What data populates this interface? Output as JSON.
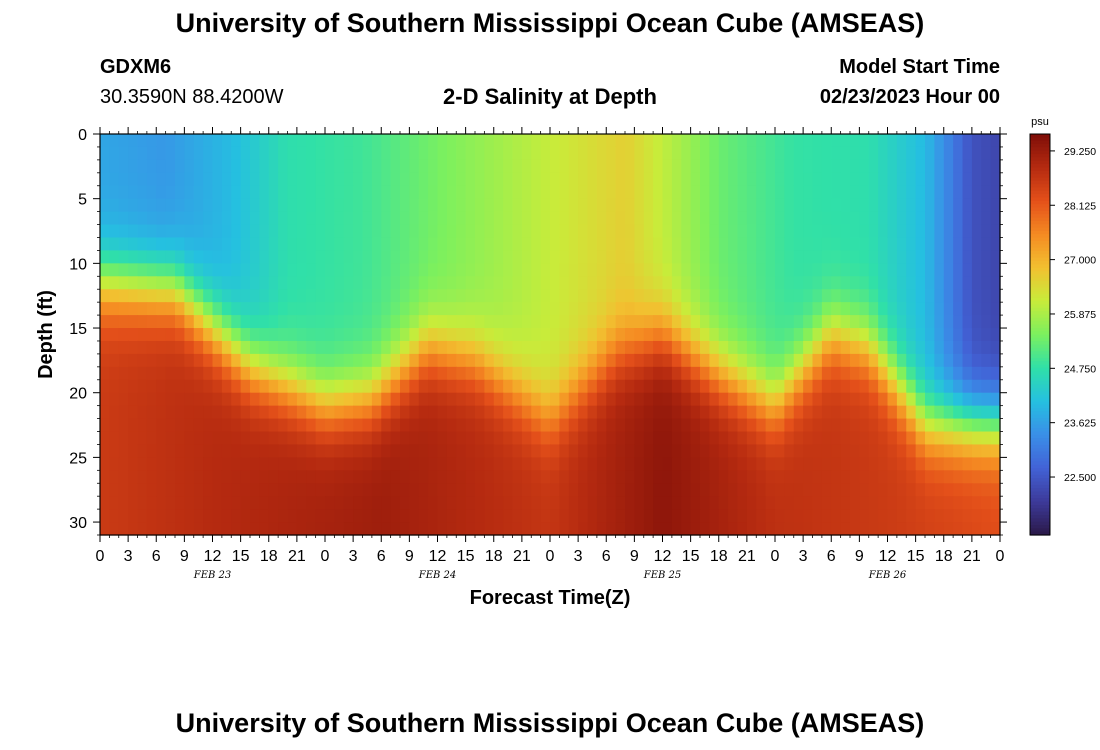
{
  "header": {
    "title": "University of Southern Mississippi Ocean Cube (AMSEAS)",
    "station": "GDXM6",
    "coordinates": "30.3590N  88.4200W",
    "subtitle": "2-D Salinity at Depth",
    "model_start_label": "Model Start Time",
    "model_start_value": "02/23/2023 Hour 00"
  },
  "footer": {
    "title": "University of Southern Mississippi Ocean Cube (AMSEAS)"
  },
  "chart_data": {
    "type": "heatmap",
    "title": "2-D Salinity at Depth",
    "xlabel": "Forecast Time(Z)",
    "ylabel": "Depth (ft)",
    "x_range": [
      0,
      96
    ],
    "y_range": [
      0,
      31
    ],
    "x_ticks": [
      "0",
      "3",
      "6",
      "9",
      "12",
      "15",
      "18",
      "21",
      "0",
      "3",
      "6",
      "9",
      "12",
      "15",
      "18",
      "21",
      "0",
      "3",
      "6",
      "9",
      "12",
      "15",
      "18",
      "21",
      "0",
      "3",
      "6",
      "9",
      "12",
      "15",
      "18",
      "21",
      "0"
    ],
    "y_ticks": [
      "0",
      "5",
      "10",
      "15",
      "20",
      "25",
      "30"
    ],
    "date_labels": [
      {
        "label": "FEB 23",
        "hour": 12
      },
      {
        "label": "FEB 24",
        "hour": 36
      },
      {
        "label": "FEB 25",
        "hour": 60
      },
      {
        "label": "FEB 26",
        "hour": 84
      }
    ],
    "colorbar": {
      "unit": "psu",
      "min": 21.3,
      "max": 29.6,
      "ticks": [
        "29.250",
        "28.125",
        "27.000",
        "25.875",
        "24.750",
        "23.625",
        "22.500"
      ],
      "colors": [
        "#2a1848",
        "#3d3a9a",
        "#4262d6",
        "#3a8fe8",
        "#25c0e0",
        "#30e0a8",
        "#7cf05e",
        "#c8ec3a",
        "#f2c030",
        "#f58a22",
        "#e4501a",
        "#b52a10",
        "#7e0e08"
      ]
    },
    "surface_salinity_profile": [
      {
        "hour": 0,
        "value": 23.7
      },
      {
        "hour": 7,
        "value": 23.5
      },
      {
        "hour": 14,
        "value": 24.0
      },
      {
        "hour": 20,
        "value": 24.7
      },
      {
        "hour": 28,
        "value": 24.9
      },
      {
        "hour": 36,
        "value": 25.4
      },
      {
        "hour": 46,
        "value": 26.0
      },
      {
        "hour": 56,
        "value": 26.6
      },
      {
        "hour": 66,
        "value": 25.3
      },
      {
        "hour": 74,
        "value": 24.8
      },
      {
        "hour": 82,
        "value": 24.7
      },
      {
        "hour": 88,
        "value": 24.0
      },
      {
        "hour": 93,
        "value": 22.4
      },
      {
        "hour": 96,
        "value": 22.2
      }
    ],
    "bottom_salinity_profile": [
      {
        "hour": 0,
        "value": 28.6
      },
      {
        "hour": 12,
        "value": 28.9
      },
      {
        "hour": 30,
        "value": 29.2
      },
      {
        "hour": 48,
        "value": 28.7
      },
      {
        "hour": 60,
        "value": 29.4
      },
      {
        "hour": 72,
        "value": 28.8
      },
      {
        "hour": 84,
        "value": 28.6
      },
      {
        "hour": 96,
        "value": 28.3
      }
    ],
    "halocline_depth_profile": [
      {
        "hour": 0,
        "value": 11.5
      },
      {
        "hour": 8,
        "value": 12.0
      },
      {
        "hour": 16,
        "value": 18.0
      },
      {
        "hour": 24,
        "value": 21.0
      },
      {
        "hour": 29,
        "value": 20.5
      },
      {
        "hour": 35,
        "value": 16.5
      },
      {
        "hour": 40,
        "value": 17.5
      },
      {
        "hour": 48,
        "value": 22.0
      },
      {
        "hour": 55,
        "value": 17.0
      },
      {
        "hour": 60,
        "value": 15.5
      },
      {
        "hour": 66,
        "value": 18.5
      },
      {
        "hour": 72,
        "value": 21.0
      },
      {
        "hour": 78,
        "value": 15.5
      },
      {
        "hour": 82,
        "value": 16.5
      },
      {
        "hour": 88,
        "value": 22.5
      },
      {
        "hour": 96,
        "value": 22.5
      }
    ]
  }
}
